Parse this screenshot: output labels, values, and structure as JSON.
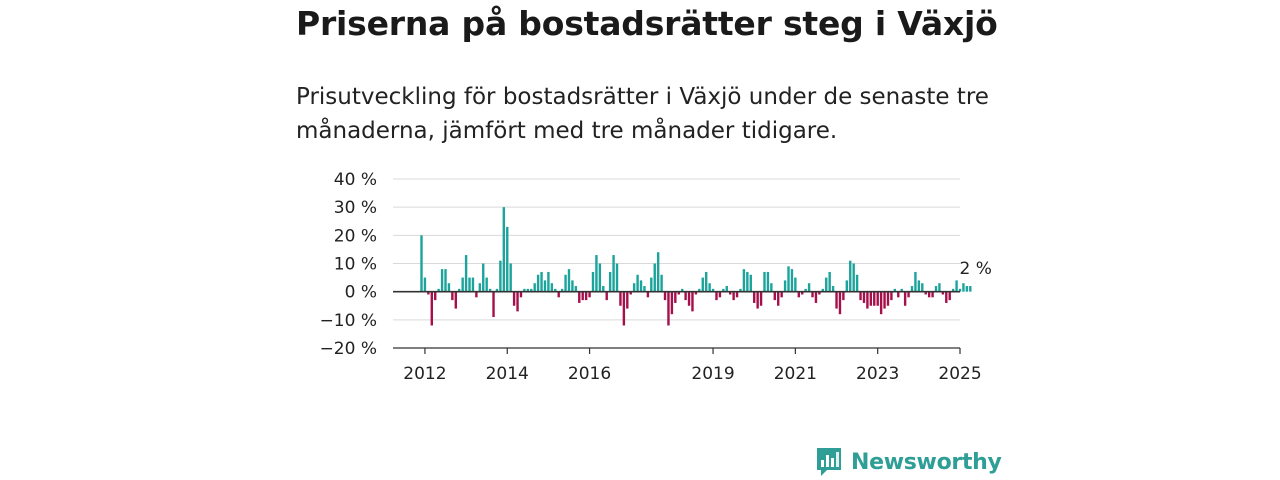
{
  "header": {
    "title": "Priserna på bostadsrätter steg i Växjö",
    "subtitle": "Prisutveckling för bostadsrätter i Växjö under de senaste tre månaderna, jämfört med tre månader tidigare."
  },
  "brand": {
    "name": "Newsworthy",
    "icon": "newsworthy-logo-icon",
    "color": "#2e9e96"
  },
  "colors": {
    "positive": "#1ba39c",
    "negative": "#a50f4a",
    "zero_line": "#333333",
    "grid": "#d9d9d9"
  },
  "chart_data": {
    "type": "bar",
    "x_unit": "month",
    "x_start": "2011-12",
    "ylim": [
      -20,
      40
    ],
    "y_ticks": [
      40,
      30,
      20,
      10,
      0,
      -10,
      -20
    ],
    "y_tick_labels": [
      "40 %",
      "30 %",
      "20 %",
      "10 %",
      "0 %",
      "−10 %",
      "−20 %"
    ],
    "x_tick_labels": [
      "2012",
      "2014",
      "2016",
      "2019",
      "2021",
      "2023",
      "2025"
    ],
    "x_tick_dates": [
      "2012-01",
      "2014-01",
      "2016-01",
      "2019-01",
      "2021-01",
      "2023-01",
      "2025-01"
    ],
    "grid": true,
    "annotation": {
      "text": "2 %",
      "date": "2025-05",
      "value": 2
    },
    "values": [
      20,
      5,
      -1,
      -12,
      -3,
      1,
      8,
      8,
      3,
      -3,
      -6,
      1,
      5,
      13,
      5,
      5,
      -2,
      3,
      10,
      5,
      1,
      -9,
      1,
      11,
      30,
      23,
      10,
      -5,
      -7,
      -2,
      1,
      1,
      1,
      3,
      6,
      7,
      4,
      7,
      3,
      1,
      -2,
      1,
      6,
      8,
      4,
      2,
      -4,
      -3,
      -3,
      -2,
      7,
      13,
      10,
      2,
      -3,
      7,
      13,
      10,
      -5,
      -12,
      -6,
      -1,
      3,
      6,
      4,
      2,
      -2,
      5,
      10,
      14,
      6,
      -3,
      -12,
      -8,
      -4,
      -1,
      1,
      -3,
      -5,
      -7,
      -1,
      1,
      5,
      7,
      3,
      1,
      -3,
      -2,
      1,
      2,
      -1,
      -3,
      -2,
      1,
      8,
      7,
      6,
      -4,
      -6,
      -5,
      7,
      7,
      3,
      -3,
      -5,
      -2,
      4,
      9,
      8,
      5,
      -2,
      -1,
      1,
      3,
      -2,
      -4,
      -1,
      1,
      5,
      7,
      2,
      -6,
      -8,
      -3,
      4,
      11,
      10,
      6,
      -3,
      -4,
      -6,
      -5,
      -5,
      -5,
      -8,
      -6,
      -5,
      -3,
      1,
      -2,
      1,
      -5,
      -2,
      2,
      7,
      4,
      3,
      -1,
      -2,
      -2,
      2,
      3,
      -1,
      -4,
      -3,
      1,
      4,
      1,
      3,
      2,
      2
    ]
  }
}
